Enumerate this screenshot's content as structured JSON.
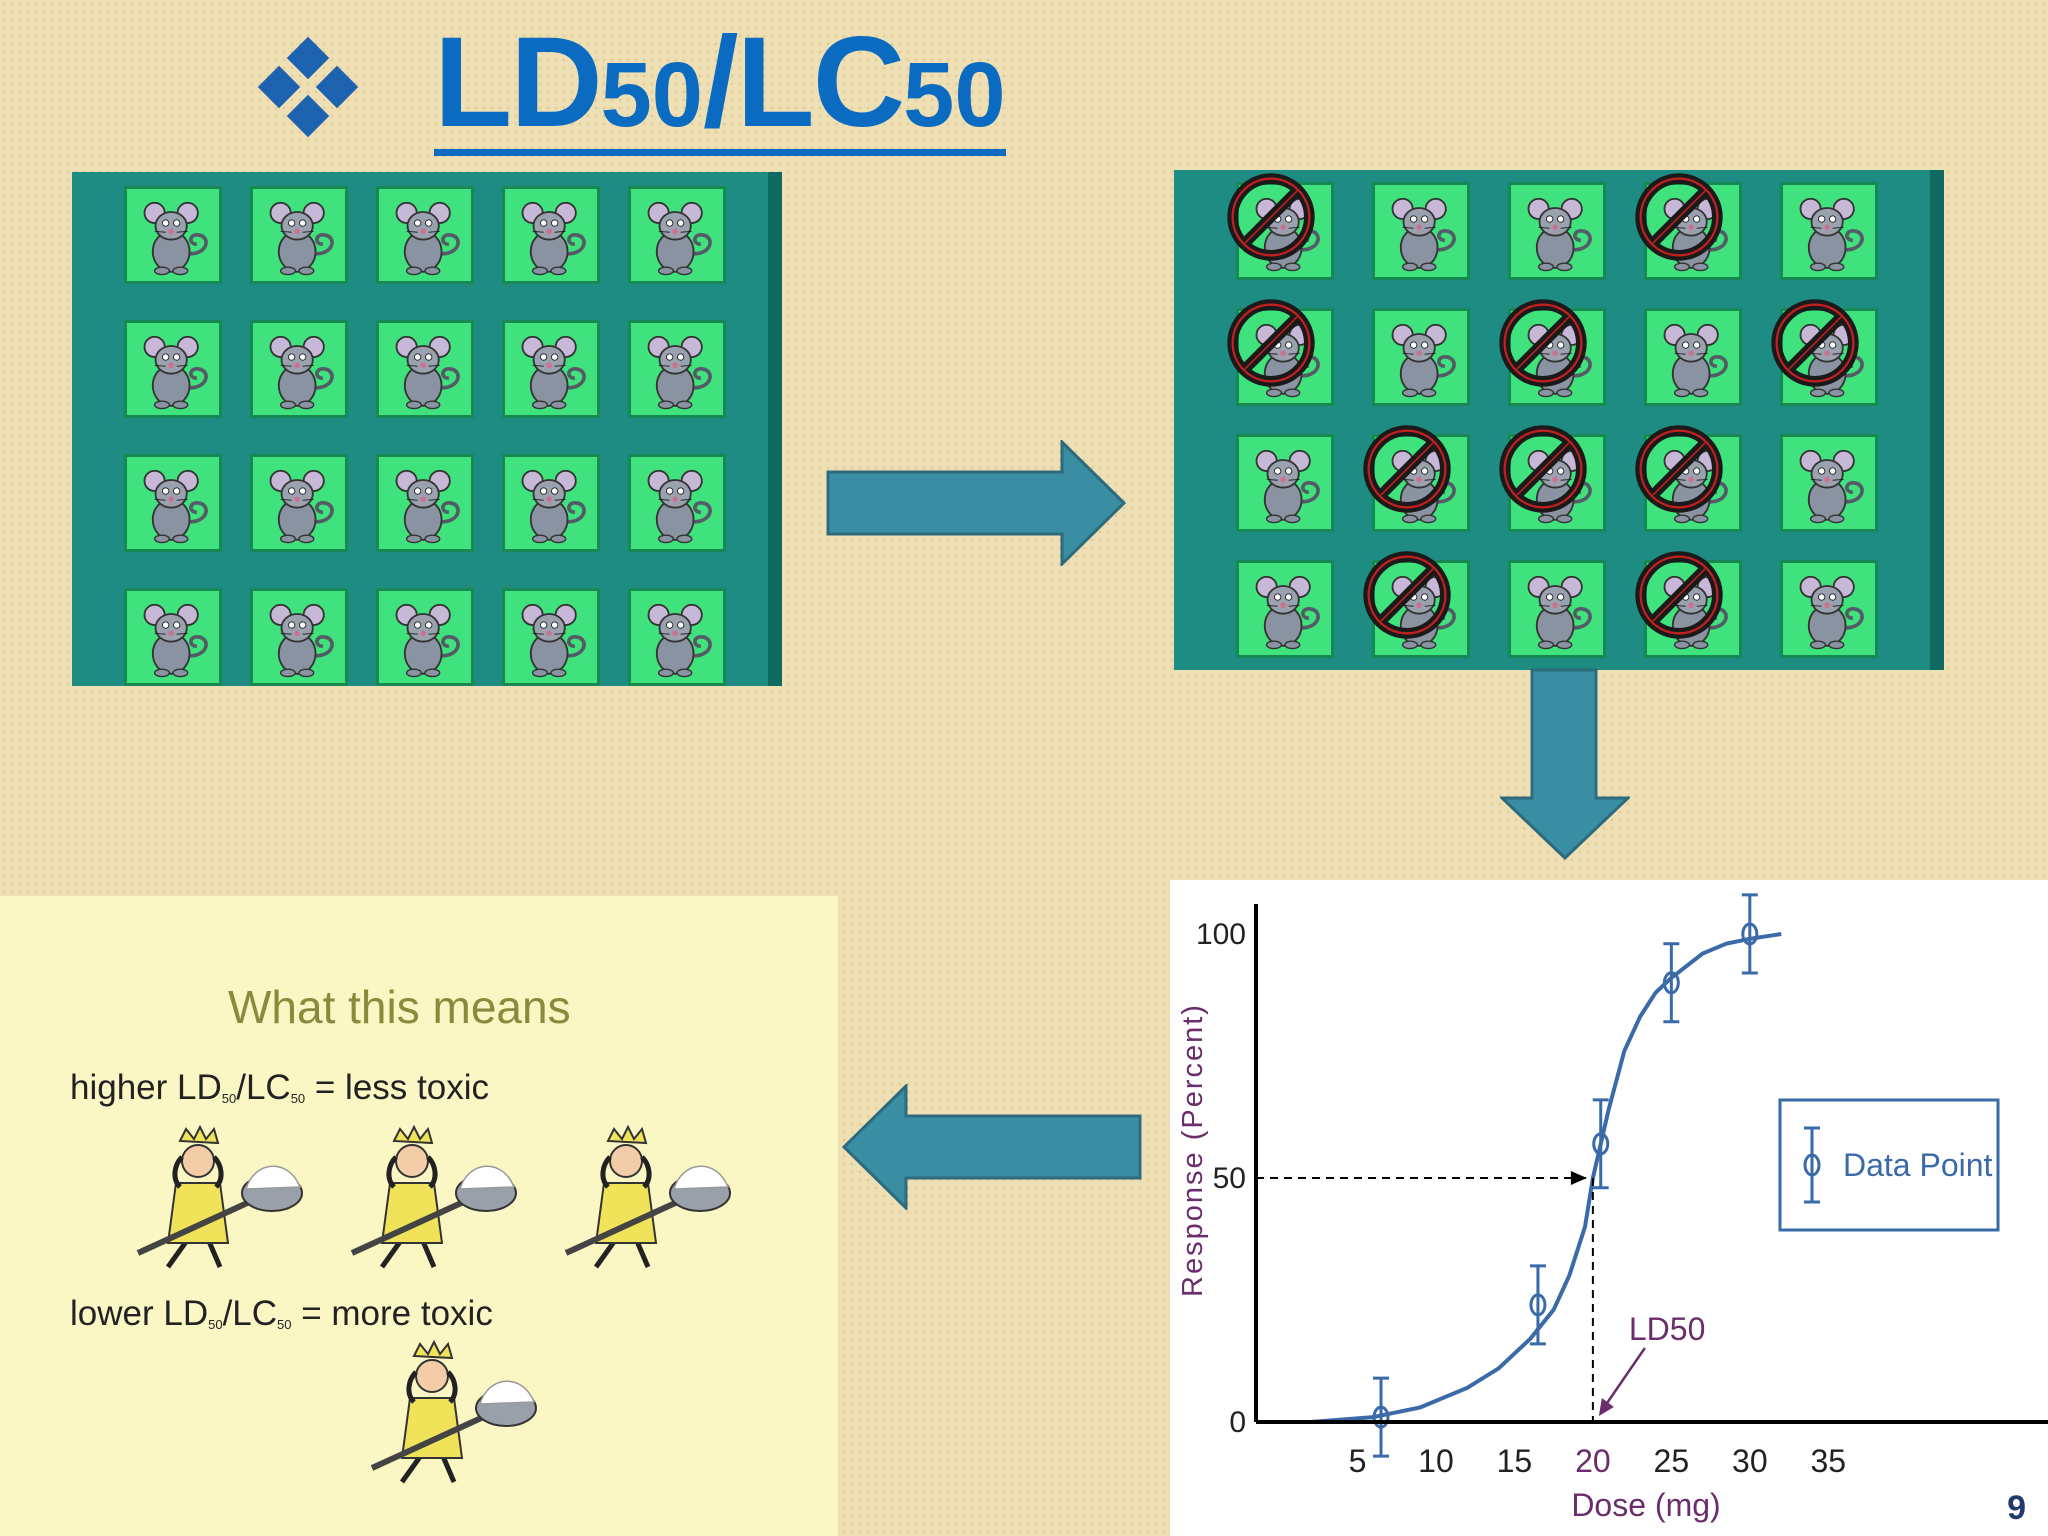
{
  "slide": {
    "title_main": "LD",
    "title_sub1": "50",
    "title_sep": "/LC",
    "title_sub2": "50",
    "page_number": "9"
  },
  "before_grid": {
    "rows": 4,
    "cols": 5,
    "eliminated": []
  },
  "after_grid": {
    "rows": 4,
    "cols": 5,
    "eliminated": [
      [
        0,
        0
      ],
      [
        0,
        3
      ],
      [
        1,
        0
      ],
      [
        1,
        2
      ],
      [
        1,
        4
      ],
      [
        2,
        1
      ],
      [
        2,
        2
      ],
      [
        2,
        3
      ],
      [
        3,
        1
      ],
      [
        3,
        3
      ]
    ]
  },
  "means": {
    "title": "What this means",
    "higher_a": "higher LD",
    "higher_sub1": "50",
    "higher_b": "/LC",
    "higher_sub2": "50",
    "higher_c": " = less toxic",
    "lower_a": "lower LD",
    "lower_sub1": "50",
    "lower_b": "/LC",
    "lower_sub2": "50",
    "lower_c": " = more toxic"
  },
  "colors": {
    "title": "#0a6bc1",
    "arrow_fill": "#3a8ea3",
    "panel_teal": "#1e8c82",
    "tile_green": "#3fe27c",
    "curve": "#3a6aa8",
    "axis_label_purple": "#6b2d6b"
  },
  "chart_data": {
    "type": "line",
    "xlabel": "Dose (mg)",
    "ylabel": "Response (Percent)",
    "xlim": [
      0,
      40
    ],
    "ylim": [
      0,
      100
    ],
    "x_ticks": [
      "5",
      "10",
      "15",
      "20",
      "25",
      "30",
      "35"
    ],
    "y_ticks": [
      "0",
      "50",
      "100"
    ],
    "curve": {
      "x": [
        2,
        6,
        9,
        12,
        14,
        16,
        17.5,
        18.5,
        19.5,
        20,
        21,
        22,
        23,
        24,
        25,
        27,
        28.5,
        30,
        32
      ],
      "y": [
        0,
        1,
        3,
        7,
        11,
        17,
        23,
        30,
        40,
        50,
        64,
        76,
        83,
        88,
        91,
        96,
        98,
        99,
        100
      ]
    },
    "points": [
      {
        "x": 6.5,
        "y": 1,
        "err": 8
      },
      {
        "x": 16.5,
        "y": 24,
        "err": 8
      },
      {
        "x": 20.5,
        "y": 57,
        "err": 9
      },
      {
        "x": 25,
        "y": 90,
        "err": 8
      },
      {
        "x": 30,
        "y": 100,
        "err": 8
      }
    ],
    "ld50_x": 20,
    "annotation": "LD50",
    "legend": "Data Point"
  }
}
